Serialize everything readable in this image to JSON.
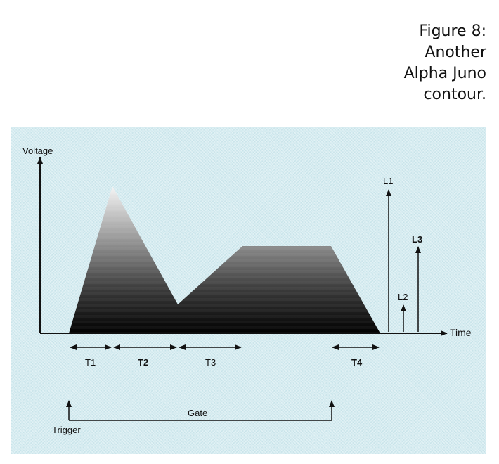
{
  "caption": {
    "line1": "Figure 8:",
    "line2": "Another",
    "line3": "Alpha Juno",
    "line4": "contour."
  },
  "diagram": {
    "y_axis_label": "Voltage",
    "x_axis_label": "Time",
    "level_labels": {
      "l1": "L1",
      "l2": "L2",
      "l3": "L3"
    },
    "time_labels": {
      "t1": "T1",
      "t2": "T2",
      "t3": "T3",
      "t4": "T4"
    },
    "gate_label": "Gate",
    "trigger_label": "Trigger"
  },
  "colors": {
    "panel": "#d6ecf1",
    "envelope_top": "#f4f4f4",
    "envelope_bottom": "#000000"
  }
}
